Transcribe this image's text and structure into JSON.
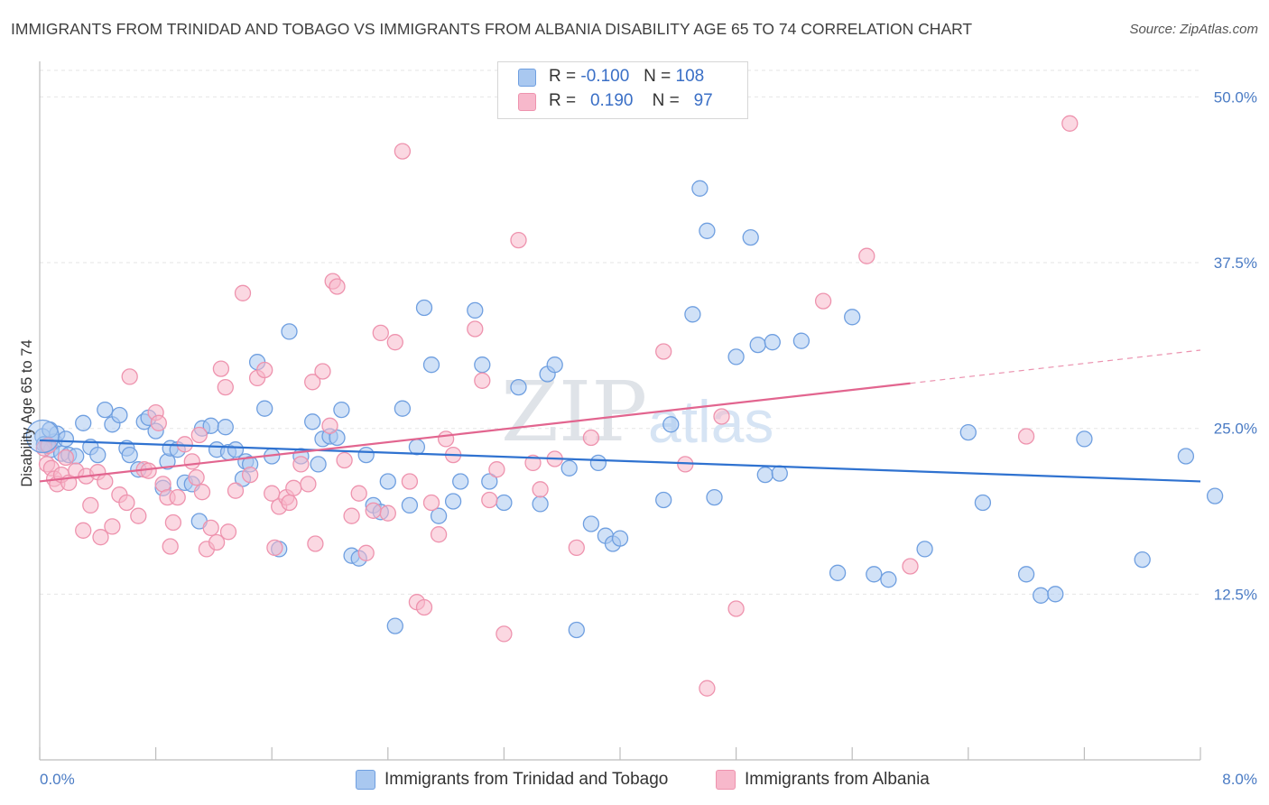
{
  "header": {
    "title": "IMMIGRANTS FROM TRINIDAD AND TOBAGO VS IMMIGRANTS FROM ALBANIA DISABILITY AGE 65 TO 74 CORRELATION CHART",
    "source": "Source: ZipAtlas.com"
  },
  "watermark": {
    "text_zip": "ZIP",
    "text_atlas": "atlas"
  },
  "legend": {
    "r_label": "R =",
    "n_label": "N =",
    "rows": [
      {
        "r": "-0.100",
        "n": "108",
        "color": "#a9c8f0"
      },
      {
        "r": "0.190",
        "n": "97",
        "color": "#f7b8cb"
      }
    ]
  },
  "chart_data": {
    "type": "scatter",
    "title": "IMMIGRANTS FROM TRINIDAD AND TOBAGO VS IMMIGRANTS FROM ALBANIA DISABILITY AGE 65 TO 74 CORRELATION CHART",
    "xlabel": "",
    "ylabel": "Disability Age 65 to 74",
    "xlim": [
      0,
      8
    ],
    "ylim": [
      0,
      52
    ],
    "x_tick_labels": [
      "0.0%",
      "8.0%"
    ],
    "y_ticks": [
      12.5,
      25.0,
      37.5,
      50.0
    ],
    "y_tick_labels": [
      "12.5%",
      "25.0%",
      "37.5%",
      "50.0%"
    ],
    "grid": true,
    "legend_position": "top-center",
    "series": [
      {
        "name": "Immigrants from Trinidad and Tobago",
        "color": "#a9c8f0",
        "stroke": "#6f9fe0",
        "trend_color": "#2f72d0",
        "trend": {
          "x0": 0.0,
          "y0": 24.1,
          "x1": 8.0,
          "y1": 21.0
        },
        "points": [
          [
            0.02,
            24.4
          ],
          [
            0.05,
            23.7
          ],
          [
            0.08,
            23.4
          ],
          [
            0.1,
            24.0
          ],
          [
            0.12,
            24.6
          ],
          [
            0.15,
            23.1
          ],
          [
            0.18,
            24.2
          ],
          [
            0.2,
            23.0
          ],
          [
            0.25,
            22.9
          ],
          [
            0.3,
            25.4
          ],
          [
            0.35,
            23.6
          ],
          [
            0.4,
            23.0
          ],
          [
            0.45,
            26.4
          ],
          [
            0.5,
            25.3
          ],
          [
            0.55,
            26.0
          ],
          [
            0.6,
            23.5
          ],
          [
            0.62,
            23.0
          ],
          [
            0.68,
            21.9
          ],
          [
            0.72,
            25.5
          ],
          [
            0.75,
            25.8
          ],
          [
            0.8,
            24.8
          ],
          [
            0.85,
            20.5
          ],
          [
            0.88,
            22.5
          ],
          [
            0.9,
            23.5
          ],
          [
            0.95,
            23.4
          ],
          [
            1.0,
            20.9
          ],
          [
            1.05,
            20.8
          ],
          [
            1.1,
            18.0
          ],
          [
            1.12,
            25.0
          ],
          [
            1.18,
            25.2
          ],
          [
            1.22,
            23.4
          ],
          [
            1.28,
            25.1
          ],
          [
            1.3,
            23.2
          ],
          [
            1.35,
            23.4
          ],
          [
            1.4,
            21.2
          ],
          [
            1.42,
            22.5
          ],
          [
            1.45,
            22.3
          ],
          [
            1.5,
            30.0
          ],
          [
            1.55,
            26.5
          ],
          [
            1.6,
            22.9
          ],
          [
            1.65,
            15.9
          ],
          [
            1.72,
            32.3
          ],
          [
            1.8,
            22.9
          ],
          [
            1.88,
            25.5
          ],
          [
            1.92,
            22.3
          ],
          [
            1.95,
            24.2
          ],
          [
            2.0,
            24.4
          ],
          [
            2.05,
            24.3
          ],
          [
            2.08,
            26.4
          ],
          [
            2.15,
            15.4
          ],
          [
            2.2,
            15.2
          ],
          [
            2.25,
            23.0
          ],
          [
            2.3,
            19.2
          ],
          [
            2.35,
            18.7
          ],
          [
            2.4,
            21.0
          ],
          [
            2.45,
            10.1
          ],
          [
            2.5,
            26.5
          ],
          [
            2.55,
            19.2
          ],
          [
            2.6,
            23.6
          ],
          [
            2.65,
            34.1
          ],
          [
            2.7,
            29.8
          ],
          [
            2.75,
            18.4
          ],
          [
            2.85,
            19.5
          ],
          [
            2.9,
            21.0
          ],
          [
            3.0,
            33.9
          ],
          [
            3.05,
            29.8
          ],
          [
            3.1,
            21.0
          ],
          [
            3.2,
            19.4
          ],
          [
            3.3,
            28.1
          ],
          [
            3.45,
            19.3
          ],
          [
            3.5,
            29.1
          ],
          [
            3.55,
            29.8
          ],
          [
            3.65,
            22.0
          ],
          [
            3.7,
            9.8
          ],
          [
            3.8,
            17.8
          ],
          [
            3.85,
            22.4
          ],
          [
            3.9,
            16.9
          ],
          [
            3.95,
            16.3
          ],
          [
            4.0,
            16.7
          ],
          [
            4.3,
            19.6
          ],
          [
            4.35,
            25.3
          ],
          [
            4.5,
            33.6
          ],
          [
            4.55,
            43.1
          ],
          [
            4.6,
            39.9
          ],
          [
            4.65,
            19.8
          ],
          [
            4.8,
            30.4
          ],
          [
            4.9,
            39.4
          ],
          [
            4.95,
            31.3
          ],
          [
            5.0,
            21.5
          ],
          [
            5.05,
            31.5
          ],
          [
            5.1,
            21.6
          ],
          [
            5.25,
            31.6
          ],
          [
            5.5,
            14.1
          ],
          [
            5.6,
            33.4
          ],
          [
            5.75,
            14.0
          ],
          [
            5.85,
            13.6
          ],
          [
            6.1,
            15.9
          ],
          [
            6.4,
            24.7
          ],
          [
            6.5,
            19.4
          ],
          [
            6.8,
            14.0
          ],
          [
            6.9,
            12.4
          ],
          [
            7.0,
            12.5
          ],
          [
            7.2,
            24.2
          ],
          [
            7.6,
            15.1
          ],
          [
            7.9,
            22.9
          ],
          [
            8.1,
            19.9
          ],
          [
            0.03,
            23.8
          ],
          [
            0.07,
            24.9
          ]
        ]
      },
      {
        "name": "Immigrants from Albania",
        "color": "#f7b8cb",
        "stroke": "#ee93ae",
        "trend_color": "#e2658f",
        "trend": {
          "x0": 0.0,
          "y0": 21.0,
          "x1": 6.0,
          "y1": 28.4
        },
        "trend_dashed": {
          "x0": 6.0,
          "y0": 28.4,
          "x1": 8.0,
          "y1": 30.9
        },
        "points": [
          [
            0.03,
            23.5
          ],
          [
            0.05,
            22.3
          ],
          [
            0.08,
            22.0
          ],
          [
            0.1,
            21.2
          ],
          [
            0.12,
            20.8
          ],
          [
            0.15,
            21.5
          ],
          [
            0.18,
            22.8
          ],
          [
            0.2,
            20.9
          ],
          [
            0.25,
            21.8
          ],
          [
            0.3,
            17.3
          ],
          [
            0.32,
            21.4
          ],
          [
            0.35,
            19.2
          ],
          [
            0.4,
            21.7
          ],
          [
            0.42,
            16.8
          ],
          [
            0.45,
            21.0
          ],
          [
            0.5,
            17.6
          ],
          [
            0.55,
            20.0
          ],
          [
            0.6,
            19.4
          ],
          [
            0.62,
            28.9
          ],
          [
            0.68,
            18.4
          ],
          [
            0.72,
            21.9
          ],
          [
            0.75,
            21.8
          ],
          [
            0.8,
            26.2
          ],
          [
            0.82,
            25.4
          ],
          [
            0.85,
            20.8
          ],
          [
            0.88,
            19.8
          ],
          [
            0.9,
            16.1
          ],
          [
            0.92,
            17.9
          ],
          [
            0.95,
            19.8
          ],
          [
            1.0,
            23.8
          ],
          [
            1.05,
            22.5
          ],
          [
            1.08,
            21.3
          ],
          [
            1.1,
            24.5
          ],
          [
            1.12,
            20.2
          ],
          [
            1.15,
            15.9
          ],
          [
            1.18,
            17.5
          ],
          [
            1.22,
            16.4
          ],
          [
            1.25,
            29.5
          ],
          [
            1.28,
            28.1
          ],
          [
            1.3,
            17.2
          ],
          [
            1.35,
            20.3
          ],
          [
            1.4,
            35.2
          ],
          [
            1.45,
            21.5
          ],
          [
            1.5,
            28.8
          ],
          [
            1.55,
            29.4
          ],
          [
            1.6,
            20.1
          ],
          [
            1.62,
            16.0
          ],
          [
            1.65,
            19.1
          ],
          [
            1.7,
            19.8
          ],
          [
            1.72,
            19.4
          ],
          [
            1.75,
            20.5
          ],
          [
            1.8,
            22.3
          ],
          [
            1.85,
            20.8
          ],
          [
            1.88,
            28.5
          ],
          [
            1.9,
            16.3
          ],
          [
            1.95,
            29.3
          ],
          [
            2.0,
            25.2
          ],
          [
            2.02,
            36.1
          ],
          [
            2.05,
            35.7
          ],
          [
            2.1,
            22.6
          ],
          [
            2.15,
            18.4
          ],
          [
            2.2,
            20.1
          ],
          [
            2.25,
            15.6
          ],
          [
            2.3,
            18.8
          ],
          [
            2.35,
            32.2
          ],
          [
            2.4,
            18.6
          ],
          [
            2.45,
            31.5
          ],
          [
            2.5,
            45.9
          ],
          [
            2.55,
            21.0
          ],
          [
            2.6,
            11.9
          ],
          [
            2.65,
            11.5
          ],
          [
            2.7,
            19.4
          ],
          [
            2.75,
            17.0
          ],
          [
            2.8,
            24.2
          ],
          [
            2.85,
            23.0
          ],
          [
            3.0,
            32.5
          ],
          [
            3.05,
            28.6
          ],
          [
            3.1,
            19.6
          ],
          [
            3.15,
            21.9
          ],
          [
            3.2,
            9.5
          ],
          [
            3.3,
            39.2
          ],
          [
            3.4,
            22.4
          ],
          [
            3.45,
            20.4
          ],
          [
            3.55,
            22.7
          ],
          [
            3.7,
            16.0
          ],
          [
            3.8,
            24.3
          ],
          [
            4.3,
            30.8
          ],
          [
            4.45,
            22.3
          ],
          [
            4.6,
            5.4
          ],
          [
            4.7,
            25.9
          ],
          [
            4.8,
            11.4
          ],
          [
            5.4,
            34.6
          ],
          [
            5.7,
            38.0
          ],
          [
            6.0,
            14.6
          ],
          [
            6.8,
            24.4
          ],
          [
            7.1,
            48.0
          ],
          [
            0.06,
            23.7
          ]
        ]
      }
    ]
  },
  "bottom_legend": [
    {
      "label": "Immigrants from Trinidad and Tobago",
      "color": "#a9c8f0"
    },
    {
      "label": "Immigrants from Albania",
      "color": "#f7b8cb"
    }
  ]
}
